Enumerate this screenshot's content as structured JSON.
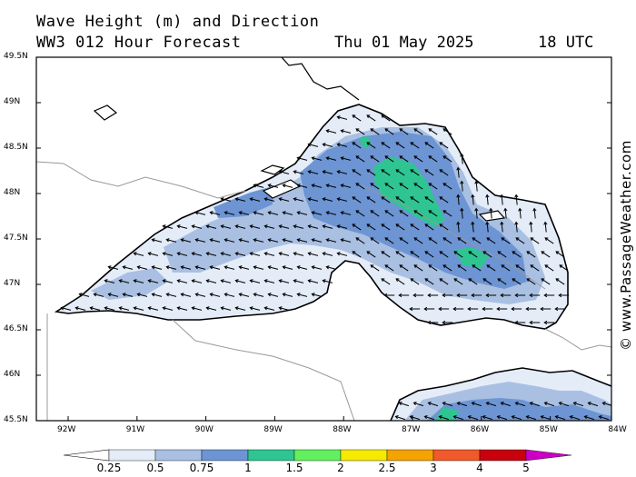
{
  "header": {
    "title_line1": "Wave Height (m) and Direction",
    "title_line2": "WW3 012 Hour Forecast",
    "date": "Thu 01 May 2025",
    "utc": "18 UTC"
  },
  "axes": {
    "lat_labels": [
      "49.5N",
      "49N",
      "48.5N",
      "48N",
      "47.5N",
      "47N",
      "46.5N",
      "46N",
      "45.5N"
    ],
    "lon_labels": [
      "92W",
      "91W",
      "90W",
      "89W",
      "88W",
      "87W",
      "86W",
      "85W",
      "84W"
    ],
    "lat_range": [
      45.5,
      49.5
    ],
    "lon_range": [
      -92.5,
      -84
    ]
  },
  "colorbar": {
    "labels": [
      "0.25",
      "0.5",
      "0.75",
      "1",
      "1.5",
      "2",
      "2.5",
      "3",
      "4",
      "5"
    ],
    "colors": [
      "#e4ecf8",
      "#a9c0e3",
      "#6d95d4",
      "#2fc592",
      "#62f05e",
      "#f5ea00",
      "#f5a300",
      "#f05a2a",
      "#c9000e",
      "#cc00c4"
    ]
  },
  "copyright": "© www.PassageWeather.com",
  "map": {
    "land_color": "#ffffff",
    "coast_color": "#000000",
    "border_color": "#999999",
    "arrow_color": "#000000"
  }
}
